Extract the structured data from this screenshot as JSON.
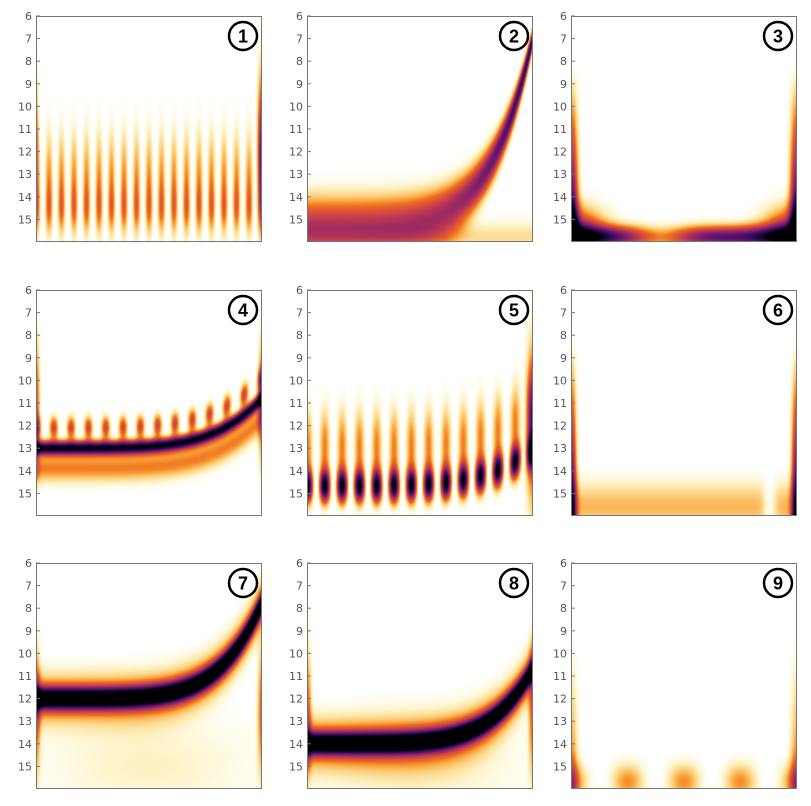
{
  "chart_data": [
    {
      "type": "heatmap",
      "panel_label": "1",
      "pattern": "fringe",
      "ylim": [
        6,
        16
      ],
      "yticks": [
        6,
        7,
        8,
        9,
        10,
        11,
        12,
        13,
        14,
        15
      ],
      "colormap": "inferno-reversed"
    },
    {
      "type": "heatmap",
      "panel_label": "2",
      "pattern": "ridge-soft",
      "ylim": [
        6,
        16
      ],
      "yticks": [
        6,
        7,
        8,
        9,
        10,
        11,
        12,
        13,
        14,
        15
      ],
      "colormap": "inferno-reversed"
    },
    {
      "type": "heatmap",
      "panel_label": "3",
      "pattern": "bowl",
      "ylim": [
        6,
        16
      ],
      "yticks": [
        6,
        7,
        8,
        9,
        10,
        11,
        12,
        13,
        14,
        15
      ],
      "colormap": "inferno-reversed"
    },
    {
      "type": "heatmap",
      "panel_label": "4",
      "pattern": "ridge-sharp-fringe",
      "ridge_level": 13,
      "ylim": [
        6,
        16
      ],
      "yticks": [
        6,
        7,
        8,
        9,
        10,
        11,
        12,
        13,
        14,
        15
      ],
      "colormap": "inferno-reversed"
    },
    {
      "type": "heatmap",
      "panel_label": "5",
      "pattern": "blobs",
      "blob_level": 14.7,
      "blob_count": 13,
      "ylim": [
        6,
        16
      ],
      "yticks": [
        6,
        7,
        8,
        9,
        10,
        11,
        12,
        13,
        14,
        15
      ],
      "colormap": "inferno-reversed"
    },
    {
      "type": "heatmap",
      "panel_label": "6",
      "pattern": "edges",
      "ylim": [
        6,
        16
      ],
      "yticks": [
        6,
        7,
        8,
        9,
        10,
        11,
        12,
        13,
        14,
        15
      ],
      "colormap": "inferno-reversed"
    },
    {
      "type": "heatmap",
      "panel_label": "7",
      "pattern": "ridge-sharp",
      "ridge_level": 12,
      "ylim": [
        6,
        16
      ],
      "yticks": [
        6,
        7,
        8,
        9,
        10,
        11,
        12,
        13,
        14,
        15
      ],
      "colormap": "inferno-reversed"
    },
    {
      "type": "heatmap",
      "panel_label": "8",
      "pattern": "ridge-sharp",
      "ridge_level": 14,
      "ylim": [
        6,
        16
      ],
      "yticks": [
        6,
        7,
        8,
        9,
        10,
        11,
        12,
        13,
        14,
        15
      ],
      "colormap": "inferno-reversed"
    },
    {
      "type": "heatmap",
      "panel_label": "9",
      "pattern": "faint",
      "ylim": [
        6,
        16
      ],
      "yticks": [
        6,
        7,
        8,
        9,
        10,
        11,
        12,
        13,
        14,
        15
      ],
      "colormap": "inferno-reversed"
    }
  ]
}
